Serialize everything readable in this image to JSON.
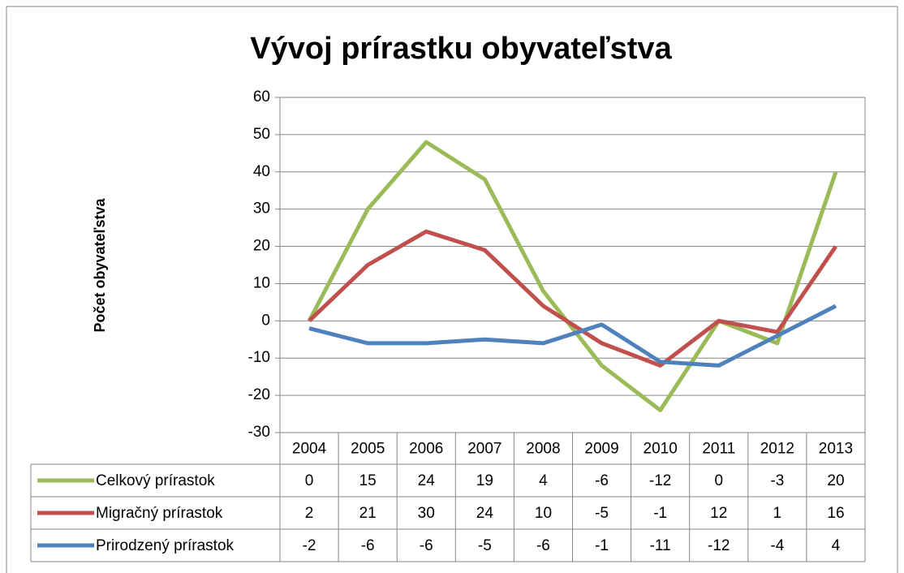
{
  "chart_data": {
    "type": "line",
    "stacked": true,
    "title": "Vývoj prírastku obyvateľstva",
    "y_label": "Počet obyvateľstva",
    "categories": [
      "2004",
      "2005",
      "2006",
      "2007",
      "2008",
      "2009",
      "2010",
      "2011",
      "2012",
      "2013"
    ],
    "series": [
      {
        "name": "Celkový prírastok",
        "color": "#9bbb59",
        "values": [
          0,
          15,
          24,
          19,
          4,
          -6,
          -12,
          0,
          -3,
          20
        ]
      },
      {
        "name": "Migračný prírastok",
        "color": "#c0504d",
        "values": [
          2,
          21,
          30,
          24,
          10,
          -5,
          -1,
          12,
          1,
          16
        ]
      },
      {
        "name": "Prirodzený prírastok",
        "color": "#4f81bd",
        "values": [
          -2,
          -6,
          -6,
          -5,
          -6,
          -1,
          -11,
          -12,
          -4,
          4
        ]
      }
    ],
    "ylim": [
      -30,
      60
    ],
    "yticks": [
      -30,
      -20,
      -10,
      0,
      10,
      20,
      30,
      40,
      50,
      60
    ],
    "grid": true
  }
}
